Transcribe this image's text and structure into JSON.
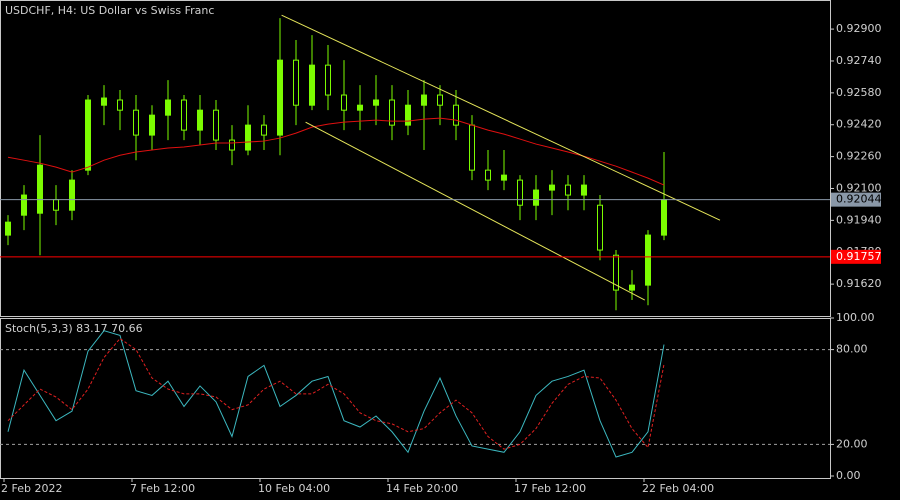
{
  "chart_data": [
    {
      "type": "candlestick",
      "title": "USDCHF, H4:  US Dollar vs Swiss Franc",
      "categories": [
        "2 Feb 2022",
        null,
        null,
        null,
        null,
        null,
        null,
        null,
        "7 Feb 12:00",
        null,
        null,
        null,
        null,
        null,
        null,
        null,
        "10 Feb 04:00",
        null,
        null,
        null,
        null,
        null,
        null,
        null,
        "14 Feb 20:00",
        null,
        null,
        null,
        null,
        null,
        null,
        null,
        "17 Feb 12:00",
        null,
        null,
        null,
        null,
        null,
        null,
        null,
        "22 Feb 04:00",
        null
      ],
      "open": [
        0.91866,
        0.91966,
        0.91976,
        0.92044,
        0.91991,
        0.92192,
        0.92518,
        0.92544,
        0.92493,
        0.92368,
        0.92468,
        0.92544,
        0.92393,
        0.92493,
        0.92343,
        0.92293,
        0.92418,
        0.92368,
        0.92744,
        0.92518,
        0.92719,
        0.92569,
        0.92493,
        0.92518,
        0.92544,
        0.92418,
        0.92518,
        0.92569,
        0.92518,
        0.92418,
        0.92192,
        0.92142,
        0.92142,
        0.92016,
        0.92092,
        0.92117,
        0.92067,
        0.92016,
        0.91765,
        0.9159,
        0.91615,
        0.91866
      ],
      "high": [
        0.91966,
        0.92117,
        0.92368,
        0.92117,
        0.92192,
        0.92569,
        0.92619,
        0.92594,
        0.92569,
        0.92518,
        0.92644,
        0.92569,
        0.92569,
        0.92544,
        0.92418,
        0.92518,
        0.92468,
        0.92955,
        0.92845,
        0.9287,
        0.9282,
        0.92744,
        0.92619,
        0.92669,
        0.92619,
        0.92594,
        0.92644,
        0.92619,
        0.92594,
        0.92468,
        0.92293,
        0.92293,
        0.92167,
        0.92167,
        0.92192,
        0.92167,
        0.92167,
        0.92067,
        0.91791,
        0.9169,
        0.91891,
        0.92283
      ],
      "low": [
        0.91816,
        0.91891,
        0.91765,
        0.91916,
        0.91941,
        0.92167,
        0.92418,
        0.92393,
        0.92242,
        0.92293,
        0.92343,
        0.92343,
        0.92318,
        0.92293,
        0.92217,
        0.92267,
        0.92293,
        0.92267,
        0.92418,
        0.92493,
        0.92493,
        0.92393,
        0.92393,
        0.92418,
        0.92343,
        0.92368,
        0.92293,
        0.92418,
        0.92343,
        0.92142,
        0.92092,
        0.92092,
        0.91941,
        0.91941,
        0.91966,
        0.91991,
        0.91991,
        0.9174,
        0.91489,
        0.9154,
        0.91514,
        0.91841
      ],
      "close": [
        0.91931,
        0.92067,
        0.92217,
        0.91991,
        0.92142,
        0.92544,
        0.92554,
        0.92493,
        0.92368,
        0.92468,
        0.92544,
        0.92393,
        0.92493,
        0.92343,
        0.92293,
        0.92418,
        0.92368,
        0.92744,
        0.92518,
        0.92719,
        0.92569,
        0.92493,
        0.92518,
        0.92544,
        0.92418,
        0.92518,
        0.92569,
        0.92518,
        0.92418,
        0.92192,
        0.92142,
        0.92167,
        0.92016,
        0.92092,
        0.92117,
        0.92067,
        0.92117,
        0.91791,
        0.9159,
        0.91615,
        0.91866,
        0.92044
      ],
      "up_color": "#7cfc00",
      "down_color": "#000000",
      "wick_color": "#7cfc00",
      "ma": {
        "color": "#e01010",
        "values": [
          0.92257,
          0.92242,
          0.92227,
          0.92207,
          0.92182,
          0.92207,
          0.92242,
          0.92267,
          0.92283,
          0.92293,
          0.92303,
          0.92308,
          0.92318,
          0.92328,
          0.92328,
          0.92333,
          0.92338,
          0.92353,
          0.92378,
          0.92408,
          0.92423,
          0.92433,
          0.92438,
          0.92443,
          0.92438,
          0.92438,
          0.92448,
          0.92453,
          0.92443,
          0.92418,
          0.92393,
          0.92373,
          0.92348,
          0.92323,
          0.92303,
          0.92283,
          0.92262,
          0.92237,
          0.92212,
          0.92182,
          0.92152,
          0.92117
        ]
      },
      "trendlines": [
        {
          "color": "#e6e65a",
          "x": [
            17.1,
            44.5
          ],
          "values": [
            0.9297,
            0.91941
          ]
        },
        {
          "color": "#e6e65a",
          "x": [
            18.6,
            39.8
          ],
          "values": [
            0.92433,
            0.9154
          ]
        }
      ],
      "price_lines": [
        {
          "value": 0.92044,
          "color": "#8a98a8"
        },
        {
          "value": 0.91757,
          "color": "#ff0000"
        }
      ],
      "ylim": [
        0.9146,
        0.93046
      ],
      "yticks": [
        {
          "value": 0.929,
          "label": "0.92900"
        },
        {
          "value": 0.9274,
          "label": "0.92740"
        },
        {
          "value": 0.9258,
          "label": "0.92580"
        },
        {
          "value": 0.9242,
          "label": "0.92420"
        },
        {
          "value": 0.9226,
          "label": "0.92260"
        },
        {
          "value": 0.921,
          "label": "0.92100"
        },
        {
          "value": 0.9194,
          "label": "0.91940"
        },
        {
          "value": 0.9178,
          "label": "0.91780"
        },
        {
          "value": 0.9162,
          "label": "0.91620"
        }
      ]
    },
    {
      "type": "line",
      "title": "Stoch(5,3,3)",
      "series": [
        {
          "color": "#3cb8c0",
          "dash": false,
          "values": [
            28,
            67,
            51,
            35,
            41,
            79,
            92,
            89,
            54,
            51,
            60,
            44,
            57,
            47,
            25,
            63,
            70,
            44,
            51,
            60,
            63,
            35,
            31,
            38,
            28,
            15,
            41,
            62,
            38,
            19,
            17,
            15,
            28,
            51,
            60,
            63,
            67,
            35,
            12,
            15,
            28,
            83.17
          ]
        },
        {
          "color": "#e02020",
          "dash": true,
          "values": [
            35,
            45,
            55,
            50,
            42,
            55,
            75,
            87,
            80,
            62,
            55,
            52,
            52,
            50,
            42,
            45,
            55,
            60,
            52,
            52,
            58,
            52,
            40,
            35,
            33,
            28,
            30,
            40,
            48,
            40,
            25,
            17,
            20,
            30,
            46,
            58,
            63,
            62,
            48,
            30,
            18,
            70.66
          ]
        }
      ],
      "levels": [
        80,
        20
      ],
      "ylim": [
        0,
        100
      ],
      "yticks": [
        {
          "value": 100,
          "label": "100.00"
        },
        {
          "value": 80,
          "label": "80.00"
        },
        {
          "value": 20,
          "label": "20.00"
        },
        {
          "value": 0,
          "label": "0.00"
        }
      ]
    }
  ]
}
